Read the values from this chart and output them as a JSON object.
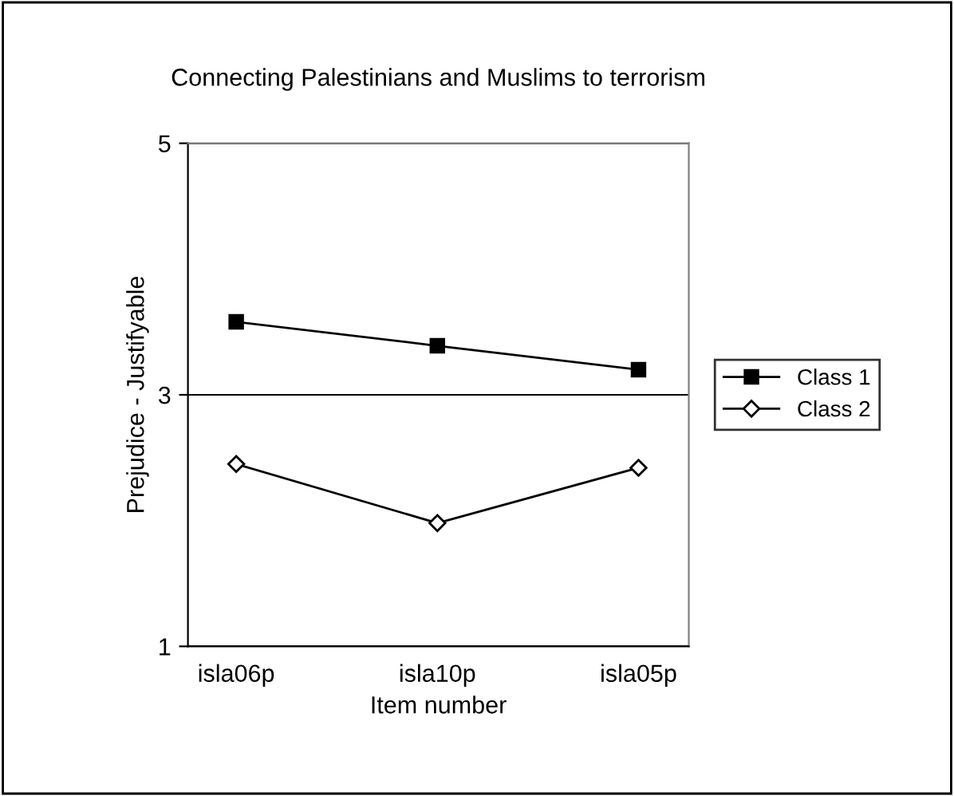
{
  "chart_data": {
    "type": "line",
    "title": "Connecting Palestinians and Muslims to terrorism",
    "xlabel": "Item number",
    "ylabel": "Prejudice - Justifyable",
    "categories": [
      "isla06p",
      "isla10p",
      "isla05p"
    ],
    "series": [
      {
        "name": "Class 1",
        "color": "#000000",
        "marker": "square",
        "values": [
          3.58,
          3.39,
          3.2
        ]
      },
      {
        "name": "Class 2",
        "color": "#000000",
        "marker": "diamond",
        "values": [
          2.45,
          1.98,
          2.42
        ]
      }
    ],
    "ylim": [
      1,
      5
    ],
    "yticks": [
      1,
      3,
      5
    ],
    "grid": "y",
    "legend": "right",
    "line_style": "solid"
  }
}
